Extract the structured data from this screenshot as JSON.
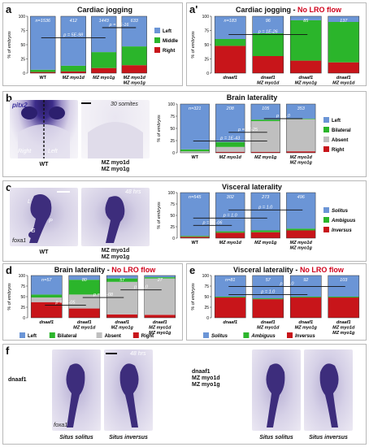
{
  "panel_labels": {
    "a": "a",
    "a2": "a'",
    "b": "b",
    "c": "c",
    "d": "d",
    "e": "e",
    "f": "f"
  },
  "colors": {
    "left": "#6b95d6",
    "middle": "#2bb52b",
    "right": "#c8151a",
    "absent": "#bfbfbf",
    "bilateral": "#2bb52b",
    "solitus": "#6b95d6",
    "ambiguus": "#2bb52b",
    "inversus": "#c8151a",
    "red_title": "#d0021b"
  },
  "photos": {
    "b_gene": "pitx2",
    "b_stage": "30 somites",
    "b_right": "Right",
    "b_left": "Left",
    "b_cap1": "WT",
    "b_cap2": [
      "MZ myo1d",
      "MZ myo1g"
    ],
    "c_stage": "48 hrs",
    "c_L": "L",
    "c_P": "P",
    "c_G": "G",
    "c_gene": "foxa1",
    "c_cap1": "WT",
    "c_cap2": [
      "MZ myo1d",
      "MZ myo1g"
    ],
    "f_stage": "48 hrs",
    "f_gene": "foxa1",
    "f_geno1": [
      "dnaaf1"
    ],
    "f_geno2": [
      "dnaaf1",
      "MZ myo1d",
      "MZ myo1g"
    ],
    "f_cap": [
      "Situs solitus",
      "Situs inversus",
      "Situs solitus",
      "Situs inversus"
    ]
  },
  "chart_data": [
    {
      "id": "a",
      "type": "bar",
      "stacked": true,
      "title": "Cardiac jogging",
      "title_red": "",
      "ylabel": "% of embryos",
      "ylim": [
        0,
        100
      ],
      "categories": [
        [
          "WT"
        ],
        [
          "MZ myo1d"
        ],
        [
          "MZ myo1g"
        ],
        [
          "MZ myo1d",
          "MZ myo1g"
        ]
      ],
      "n_labels": [
        "n=1536",
        "412",
        "1443",
        "633"
      ],
      "series": [
        {
          "name": "Right",
          "color": "#c8151a",
          "values": [
            2,
            3,
            9,
            14
          ]
        },
        {
          "name": "Middle",
          "color": "#2bb52b",
          "values": [
            4,
            10,
            28,
            33
          ]
        },
        {
          "name": "Left",
          "color": "#6b95d6",
          "values": [
            94,
            87,
            63,
            53
          ]
        }
      ],
      "legend": [
        "Left",
        "Middle",
        "Right"
      ],
      "pvals": [
        {
          "text": "p = 5E-98",
          "from": 0,
          "to": 2,
          "y": 62
        },
        {
          "text": "p = 2E-16",
          "from": 2,
          "to": 3,
          "y": 80
        }
      ]
    },
    {
      "id": "a2",
      "type": "bar",
      "stacked": true,
      "title": "Cardiac jogging - ",
      "title_red": "No LRO flow",
      "ylabel": "% of embryos",
      "ylim": [
        0,
        100
      ],
      "categories": [
        [
          "dnaaf1"
        ],
        [
          "dnaaf1",
          "MZ myo1d"
        ],
        [
          "dnaaf1",
          "MZ myo1g"
        ],
        [
          "dnaaf1",
          "MZ myo1d",
          "MZ myo1g"
        ]
      ],
      "n_labels": [
        "n=183",
        "96",
        "85",
        "137"
      ],
      "series": [
        {
          "name": "Right",
          "color": "#c8151a",
          "values": [
            48,
            30,
            22,
            19
          ]
        },
        {
          "name": "Middle",
          "color": "#2bb52b",
          "values": [
            12,
            40,
            71,
            71
          ]
        },
        {
          "name": "Left",
          "color": "#6b95d6",
          "values": [
            40,
            30,
            7,
            10
          ]
        }
      ],
      "legend": [],
      "pvals": [
        {
          "text": "p = 1E-26",
          "from": 0,
          "to": 2,
          "y": 68
        }
      ]
    },
    {
      "id": "b",
      "type": "bar",
      "stacked": true,
      "title": "Brain laterality",
      "title_red": "",
      "ylabel": "% of embryos",
      "ylim": [
        0,
        100
      ],
      "categories": [
        [
          "WT"
        ],
        [
          "MZ myo1d"
        ],
        [
          "MZ myo1g"
        ],
        [
          "MZ myo1d",
          "MZ myo1g"
        ]
      ],
      "n_labels": [
        "n=321",
        "208",
        "105",
        "353"
      ],
      "series": [
        {
          "name": "Right",
          "color": "#c8151a",
          "values": [
            0,
            2,
            2,
            3
          ]
        },
        {
          "name": "Absent",
          "color": "#bfbfbf",
          "values": [
            3,
            10,
            63,
            66
          ]
        },
        {
          "name": "Bilateral",
          "color": "#2bb52b",
          "values": [
            4,
            10,
            3,
            1
          ]
        },
        {
          "name": "Left",
          "color": "#6b95d6",
          "values": [
            93,
            78,
            32,
            30
          ]
        }
      ],
      "legend": [
        "Left",
        "Bilateral",
        "Absent",
        "Right"
      ],
      "pvals": [
        {
          "text": "p = 1E-43",
          "from": 0,
          "to": 2,
          "y": 24
        },
        {
          "text": "p = 5E-25",
          "from": 1,
          "to": 2,
          "y": 42
        },
        {
          "text": "p = 1.0",
          "from": 2,
          "to": 3,
          "y": 70
        }
      ]
    },
    {
      "id": "c",
      "type": "bar",
      "stacked": true,
      "title": "Visceral laterality",
      "title_red": "",
      "ylabel": "% of embryos",
      "ylim": [
        0,
        100
      ],
      "categories": [
        [
          "WT"
        ],
        [
          "MZ myo1d"
        ],
        [
          "MZ myo1g"
        ],
        [
          "MZ myo1d",
          "MZ myo1g"
        ]
      ],
      "n_labels": [
        "n=545",
        "302",
        "273",
        "496"
      ],
      "series": [
        {
          "name": "Inversus",
          "color": "#c8151a",
          "values": [
            3,
            12,
            13,
            17
          ]
        },
        {
          "name": "Ambiguus",
          "color": "#2bb52b",
          "values": [
            2,
            3,
            4,
            4
          ]
        },
        {
          "name": "Solitus",
          "color": "#6b95d6",
          "values": [
            95,
            85,
            83,
            79
          ]
        }
      ],
      "legend": [
        "Solitus",
        "Ambiguus",
        "Inversus"
      ],
      "pvals": [
        {
          "text": "p = 2E-06",
          "from": 0,
          "to": 1,
          "y": 28
        },
        {
          "text": "p = 1.0",
          "from": 0,
          "to": 2,
          "y": 44
        },
        {
          "text": "p = 1.0",
          "from": 1,
          "to": 3,
          "y": 62
        }
      ]
    },
    {
      "id": "d",
      "type": "bar",
      "stacked": true,
      "title": "Brain laterality - ",
      "title_red": "No LRO flow",
      "ylabel": "% of embryos",
      "ylim": [
        0,
        100
      ],
      "categories": [
        [
          "dnaaf1"
        ],
        [
          "dnaaf1",
          "MZ myo1d"
        ],
        [
          "dnaaf1",
          "MZ myo1g"
        ],
        [
          "dnaaf1",
          "MZ myo1d",
          "MZ myo1g"
        ]
      ],
      "n_labels": [
        "n=57",
        "80",
        "57",
        "27"
      ],
      "series": [
        {
          "name": "Right",
          "color": "#c8151a",
          "values": [
            37,
            22,
            8,
            7
          ]
        },
        {
          "name": "Absent",
          "color": "#bfbfbf",
          "values": [
            11,
            33,
            77,
            86
          ]
        },
        {
          "name": "Bilateral",
          "color": "#2bb52b",
          "values": [
            7,
            35,
            8,
            3
          ]
        },
        {
          "name": "Left",
          "color": "#6b95d6",
          "values": [
            45,
            10,
            7,
            4
          ]
        }
      ],
      "legend": [
        "Left",
        "Bilateral",
        "Absent",
        "Right"
      ],
      "pvals": [
        {
          "text": "p = 3E-05",
          "from": 0,
          "to": 1,
          "y": 30
        },
        {
          "text": "p = 1E-08",
          "from": 1,
          "to": 2,
          "y": 48
        },
        {
          "text": "p = 1.0",
          "from": 2,
          "to": 3,
          "y": 66
        }
      ]
    },
    {
      "id": "e",
      "type": "bar",
      "stacked": true,
      "title": "Visceral laterality - ",
      "title_red": "No LRO flow",
      "ylabel": "% of embryos",
      "ylim": [
        0,
        100
      ],
      "categories": [
        [
          "dnaaf1"
        ],
        [
          "dnaaf1",
          "MZ myo1d"
        ],
        [
          "dnaaf1",
          "MZ myo1g"
        ],
        [
          "dnaaf1",
          "MZ myo1d",
          "MZ myo1g"
        ]
      ],
      "n_labels": [
        "n=81",
        "57",
        "92",
        "103"
      ],
      "series": [
        {
          "name": "Inversus",
          "color": "#c8151a",
          "values": [
            48,
            44,
            48,
            48
          ]
        },
        {
          "name": "Ambiguus",
          "color": "#2bb52b",
          "values": [
            2,
            2,
            2,
            2
          ]
        },
        {
          "name": "Solitus",
          "color": "#6b95d6",
          "values": [
            50,
            54,
            50,
            50
          ]
        }
      ],
      "legend": [
        "Solitus",
        "Ambiguus",
        "Inversus"
      ],
      "pvals": [
        {
          "text": "p = 1.0",
          "from": 0,
          "to": 2,
          "y": 55
        },
        {
          "text": "p = 1.0",
          "from": 0,
          "to": 3,
          "y": 74
        }
      ]
    }
  ]
}
